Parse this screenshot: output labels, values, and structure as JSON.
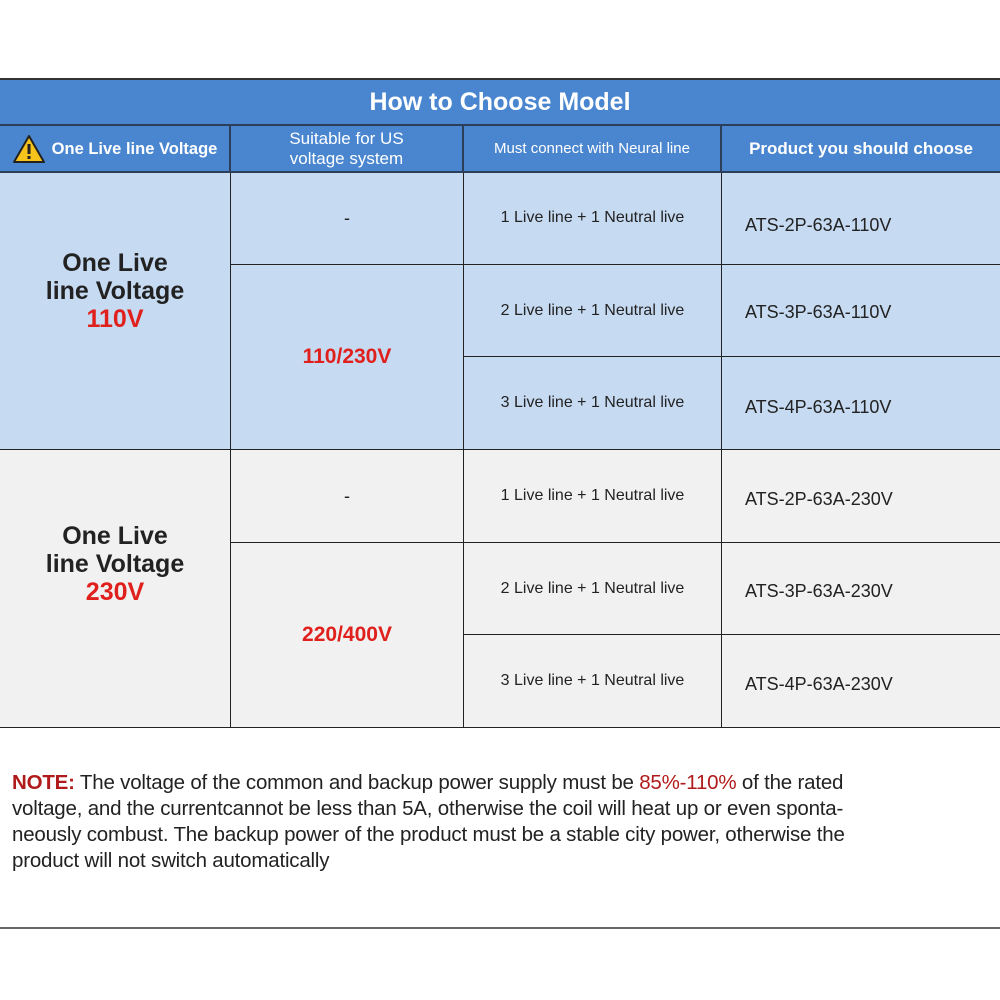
{
  "title": "How to Choose Model",
  "headers": {
    "col1": "One Live line Voltage",
    "col2_line1": "Suitable for US",
    "col2_line2": "voltage system",
    "col3": "Must connect with Neural line",
    "col4": "Product you should choose"
  },
  "groups": [
    {
      "label_line1": "One Live",
      "label_line2": "line Voltage",
      "voltage": "110V",
      "systems": [
        "-",
        "110/230V"
      ],
      "rows": [
        {
          "connection": "1 Live line + 1 Neutral live",
          "product": "ATS-2P-63A-110V"
        },
        {
          "connection": "2 Live line + 1 Neutral live",
          "product": "ATS-3P-63A-110V"
        },
        {
          "connection": "3 Live line + 1 Neutral live",
          "product": "ATS-4P-63A-110V"
        }
      ]
    },
    {
      "label_line1": "One Live",
      "label_line2": "line Voltage",
      "voltage": "230V",
      "systems": [
        "-",
        "220/400V"
      ],
      "rows": [
        {
          "connection": "1 Live line + 1 Neutral live",
          "product": "ATS-2P-63A-230V"
        },
        {
          "connection": "2 Live line + 1 Neutral live",
          "product": "ATS-3P-63A-230V"
        },
        {
          "connection": "3 Live line + 1 Neutral live",
          "product": "ATS-4P-63A-230V"
        }
      ]
    }
  ],
  "note": {
    "label": "NOTE:",
    "part1": "The voltage of the common and backup power supply must be",
    "highlight": "85%-110%",
    "part2": "of the rated",
    "line2": "voltage, and the currentcannot be less than 5A, otherwise the coil will heat up or even sponta-",
    "line3": "neously combust. The backup power of the product must be a stable city power, otherwise the",
    "line4": "product will not switch automatically"
  },
  "colors": {
    "header_blue": "#4a86cf",
    "group1_bg": "#c6daf2",
    "group2_bg": "#f1f1f1",
    "accent_red": "#e0201c"
  },
  "icons": {
    "warning": "warning-triangle-icon"
  }
}
